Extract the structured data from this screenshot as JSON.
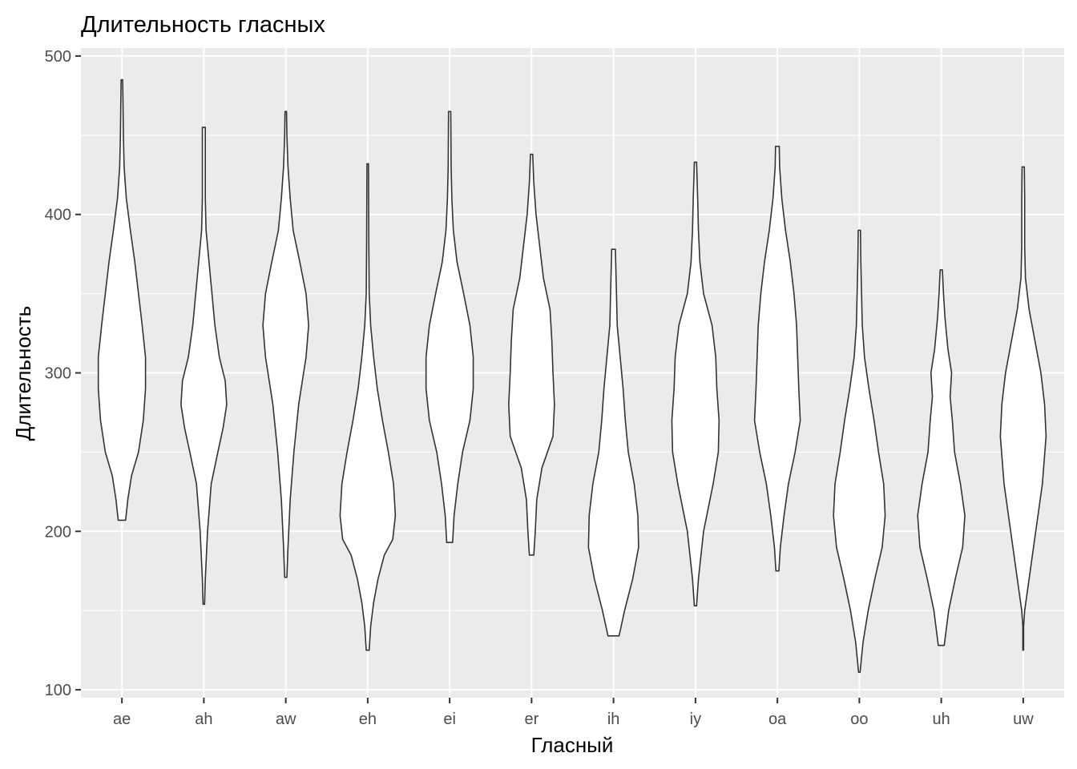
{
  "chart_data": {
    "type": "violin",
    "title": "Длительность гласных",
    "xlabel": "Гласный",
    "ylabel": "Длительность",
    "ylim": [
      95,
      505
    ],
    "yticks": [
      100,
      200,
      300,
      400,
      500
    ],
    "grid": true,
    "legend": "none",
    "colors": {
      "panel": "#ebebeb",
      "grid": "#ffffff",
      "fill": "#ffffff",
      "outline": "#333333",
      "text": "#4d4d4d"
    },
    "categories": [
      "ae",
      "ah",
      "aw",
      "eh",
      "ei",
      "er",
      "ih",
      "iy",
      "oa",
      "oo",
      "uh",
      "uw"
    ],
    "series": [
      {
        "category": "ae",
        "profile": [
          [
            207,
            0.1
          ],
          [
            220,
            0.16
          ],
          [
            235,
            0.26
          ],
          [
            250,
            0.45
          ],
          [
            270,
            0.58
          ],
          [
            290,
            0.64
          ],
          [
            310,
            0.64
          ],
          [
            330,
            0.55
          ],
          [
            350,
            0.45
          ],
          [
            370,
            0.35
          ],
          [
            390,
            0.23
          ],
          [
            410,
            0.12
          ],
          [
            430,
            0.06
          ],
          [
            450,
            0.04
          ],
          [
            470,
            0.03
          ],
          [
            485,
            0.02
          ]
        ]
      },
      {
        "category": "ah",
        "profile": [
          [
            154,
            0.02
          ],
          [
            170,
            0.04
          ],
          [
            200,
            0.1
          ],
          [
            230,
            0.2
          ],
          [
            250,
            0.38
          ],
          [
            265,
            0.52
          ],
          [
            280,
            0.62
          ],
          [
            295,
            0.58
          ],
          [
            310,
            0.42
          ],
          [
            330,
            0.3
          ],
          [
            350,
            0.22
          ],
          [
            370,
            0.14
          ],
          [
            390,
            0.06
          ],
          [
            410,
            0.04
          ],
          [
            430,
            0.04
          ],
          [
            455,
            0.04
          ]
        ]
      },
      {
        "category": "aw",
        "profile": [
          [
            171,
            0.03
          ],
          [
            190,
            0.06
          ],
          [
            220,
            0.12
          ],
          [
            250,
            0.22
          ],
          [
            280,
            0.35
          ],
          [
            310,
            0.55
          ],
          [
            330,
            0.62
          ],
          [
            350,
            0.55
          ],
          [
            370,
            0.38
          ],
          [
            390,
            0.2
          ],
          [
            410,
            0.12
          ],
          [
            430,
            0.06
          ],
          [
            450,
            0.03
          ],
          [
            465,
            0.02
          ]
        ]
      },
      {
        "category": "eh",
        "profile": [
          [
            125,
            0.04
          ],
          [
            140,
            0.08
          ],
          [
            155,
            0.16
          ],
          [
            170,
            0.28
          ],
          [
            185,
            0.45
          ],
          [
            195,
            0.68
          ],
          [
            210,
            0.75
          ],
          [
            230,
            0.7
          ],
          [
            250,
            0.56
          ],
          [
            270,
            0.4
          ],
          [
            290,
            0.26
          ],
          [
            310,
            0.16
          ],
          [
            330,
            0.08
          ],
          [
            350,
            0.04
          ],
          [
            380,
            0.03
          ],
          [
            432,
            0.02
          ]
        ]
      },
      {
        "category": "ei",
        "profile": [
          [
            193,
            0.08
          ],
          [
            210,
            0.12
          ],
          [
            230,
            0.22
          ],
          [
            250,
            0.35
          ],
          [
            270,
            0.55
          ],
          [
            290,
            0.64
          ],
          [
            310,
            0.64
          ],
          [
            330,
            0.55
          ],
          [
            350,
            0.38
          ],
          [
            370,
            0.2
          ],
          [
            390,
            0.1
          ],
          [
            410,
            0.06
          ],
          [
            430,
            0.04
          ],
          [
            465,
            0.03
          ]
        ]
      },
      {
        "category": "er",
        "profile": [
          [
            185,
            0.06
          ],
          [
            200,
            0.1
          ],
          [
            220,
            0.14
          ],
          [
            240,
            0.28
          ],
          [
            260,
            0.58
          ],
          [
            280,
            0.62
          ],
          [
            300,
            0.58
          ],
          [
            320,
            0.55
          ],
          [
            340,
            0.5
          ],
          [
            360,
            0.32
          ],
          [
            380,
            0.22
          ],
          [
            400,
            0.12
          ],
          [
            420,
            0.06
          ],
          [
            438,
            0.03
          ]
        ]
      },
      {
        "category": "ih",
        "profile": [
          [
            134,
            0.15
          ],
          [
            150,
            0.3
          ],
          [
            170,
            0.52
          ],
          [
            190,
            0.68
          ],
          [
            210,
            0.66
          ],
          [
            230,
            0.56
          ],
          [
            250,
            0.4
          ],
          [
            270,
            0.32
          ],
          [
            290,
            0.26
          ],
          [
            310,
            0.18
          ],
          [
            330,
            0.1
          ],
          [
            350,
            0.08
          ],
          [
            378,
            0.05
          ]
        ]
      },
      {
        "category": "iy",
        "profile": [
          [
            153,
            0.03
          ],
          [
            170,
            0.08
          ],
          [
            200,
            0.22
          ],
          [
            230,
            0.48
          ],
          [
            250,
            0.62
          ],
          [
            270,
            0.64
          ],
          [
            290,
            0.58
          ],
          [
            310,
            0.55
          ],
          [
            330,
            0.45
          ],
          [
            350,
            0.22
          ],
          [
            370,
            0.12
          ],
          [
            390,
            0.08
          ],
          [
            410,
            0.06
          ],
          [
            433,
            0.03
          ]
        ]
      },
      {
        "category": "oa",
        "profile": [
          [
            175,
            0.04
          ],
          [
            190,
            0.08
          ],
          [
            210,
            0.18
          ],
          [
            230,
            0.3
          ],
          [
            250,
            0.48
          ],
          [
            270,
            0.62
          ],
          [
            290,
            0.58
          ],
          [
            310,
            0.55
          ],
          [
            330,
            0.52
          ],
          [
            350,
            0.45
          ],
          [
            370,
            0.35
          ],
          [
            390,
            0.22
          ],
          [
            410,
            0.12
          ],
          [
            430,
            0.06
          ],
          [
            443,
            0.05
          ]
        ]
      },
      {
        "category": "oo",
        "profile": [
          [
            111,
            0.02
          ],
          [
            130,
            0.1
          ],
          [
            150,
            0.24
          ],
          [
            170,
            0.42
          ],
          [
            190,
            0.62
          ],
          [
            210,
            0.7
          ],
          [
            230,
            0.66
          ],
          [
            250,
            0.52
          ],
          [
            270,
            0.4
          ],
          [
            290,
            0.26
          ],
          [
            310,
            0.14
          ],
          [
            330,
            0.08
          ],
          [
            350,
            0.06
          ],
          [
            370,
            0.04
          ],
          [
            390,
            0.03
          ]
        ]
      },
      {
        "category": "uh",
        "profile": [
          [
            128,
            0.08
          ],
          [
            150,
            0.2
          ],
          [
            170,
            0.38
          ],
          [
            190,
            0.58
          ],
          [
            210,
            0.64
          ],
          [
            230,
            0.52
          ],
          [
            250,
            0.36
          ],
          [
            270,
            0.3
          ],
          [
            285,
            0.24
          ],
          [
            300,
            0.28
          ],
          [
            315,
            0.18
          ],
          [
            335,
            0.1
          ],
          [
            350,
            0.06
          ],
          [
            365,
            0.03
          ]
        ]
      },
      {
        "category": "uw",
        "profile": [
          [
            125,
            0.01
          ],
          [
            140,
            0.01
          ],
          [
            150,
            0.04
          ],
          [
            170,
            0.16
          ],
          [
            200,
            0.34
          ],
          [
            230,
            0.52
          ],
          [
            260,
            0.62
          ],
          [
            280,
            0.58
          ],
          [
            300,
            0.48
          ],
          [
            320,
            0.32
          ],
          [
            340,
            0.16
          ],
          [
            360,
            0.06
          ],
          [
            380,
            0.04
          ],
          [
            410,
            0.04
          ],
          [
            430,
            0.03
          ]
        ]
      }
    ]
  }
}
